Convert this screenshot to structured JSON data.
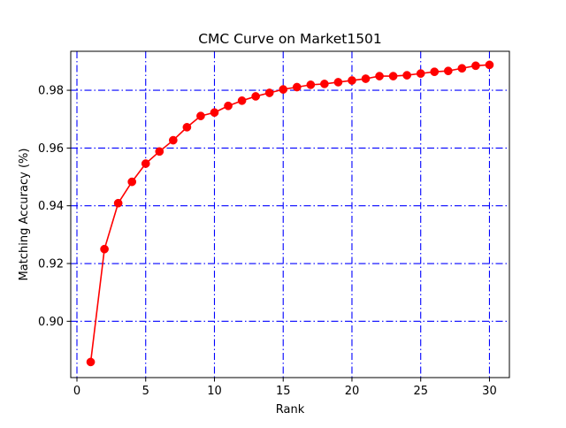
{
  "chart_data": {
    "type": "line",
    "title": "CMC Curve on Market1501",
    "xlabel": "Rank",
    "ylabel": "Matching Accuracy (%)",
    "xlim": [
      -0.45,
      31.45
    ],
    "ylim": [
      0.8805,
      0.9935
    ],
    "xticks": [
      0,
      5,
      10,
      15,
      20,
      25,
      30
    ],
    "xtick_labels": [
      "0",
      "5",
      "10",
      "15",
      "20",
      "25",
      "30"
    ],
    "yticks": [
      0.9,
      0.92,
      0.94,
      0.96,
      0.98
    ],
    "ytick_labels": [
      "0.90",
      "0.92",
      "0.94",
      "0.96",
      "0.98"
    ],
    "grid": true,
    "grid_style": "dash-dot",
    "grid_color": "#0000ff",
    "line_color": "#ff0000",
    "marker": "circle",
    "x": [
      1,
      2,
      3,
      4,
      5,
      6,
      7,
      8,
      9,
      10,
      11,
      12,
      13,
      14,
      15,
      16,
      17,
      18,
      19,
      20,
      21,
      22,
      23,
      24,
      25,
      26,
      27,
      28,
      29,
      30
    ],
    "series": [
      {
        "values": [
          0.8859,
          0.925,
          0.9409,
          0.9483,
          0.9546,
          0.9588,
          0.9627,
          0.9672,
          0.9711,
          0.9723,
          0.9746,
          0.9764,
          0.9779,
          0.9791,
          0.9803,
          0.9811,
          0.9819,
          0.9822,
          0.9828,
          0.9834,
          0.984,
          0.9849,
          0.9849,
          0.9852,
          0.9858,
          0.9864,
          0.9867,
          0.9876,
          0.9885,
          0.9888
        ]
      }
    ]
  }
}
